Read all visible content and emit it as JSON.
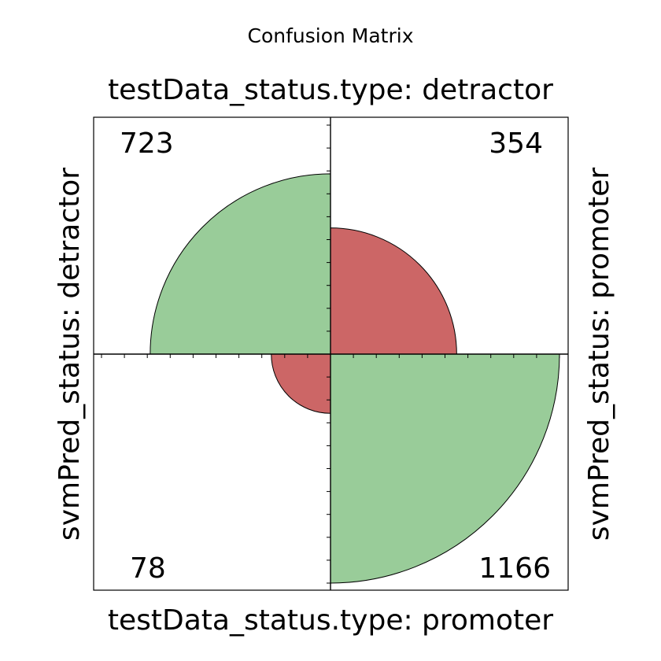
{
  "chart_data": {
    "type": "fourfold",
    "title": "Confusion Matrix",
    "top_label": "testData_status.type: detractor",
    "bottom_label": "testData_status.type: promoter",
    "left_label": "svmPred_status: detractor",
    "right_label": "svmPred_status: promoter",
    "cells": [
      {
        "quadrant": "top-left",
        "value": 723,
        "label": "723",
        "correct": true
      },
      {
        "quadrant": "top-right",
        "value": 354,
        "label": "354",
        "correct": false
      },
      {
        "quadrant": "bottom-left",
        "value": 78,
        "label": "78",
        "correct": false
      },
      {
        "quadrant": "bottom-right",
        "value": 1166,
        "label": "1166",
        "correct": true
      }
    ],
    "colors": {
      "correct": "#99cc99",
      "incorrect": "#cc6666",
      "edge": "#000000"
    }
  }
}
